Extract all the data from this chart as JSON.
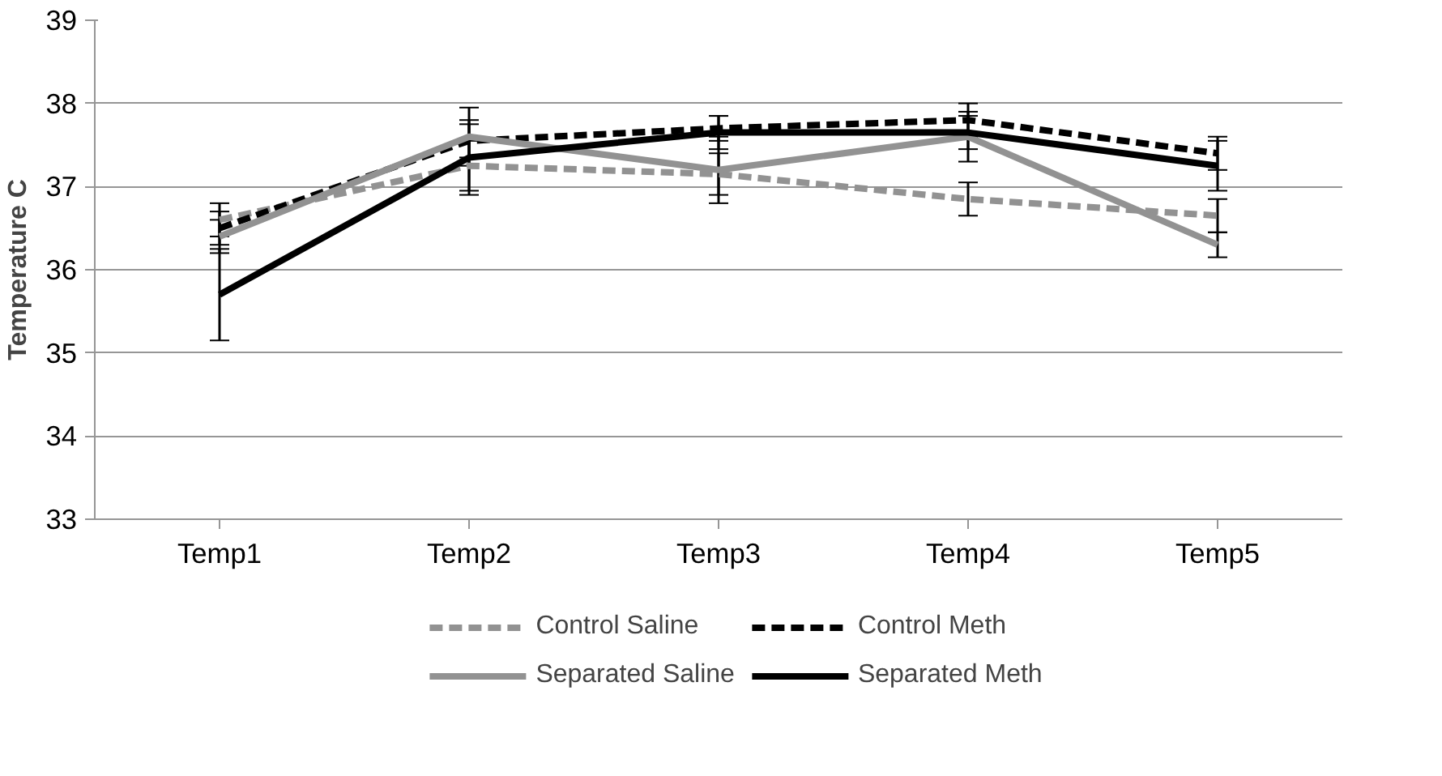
{
  "chart_data": {
    "type": "line",
    "ylabel": "Temperature C",
    "categories": [
      "Temp1",
      "Temp2",
      "Temp3",
      "Temp4",
      "Temp5"
    ],
    "ylim": [
      33,
      39
    ],
    "yticks": [
      33,
      34,
      35,
      36,
      37,
      38,
      39
    ],
    "grid": "y",
    "legend": "bottom",
    "marker": "none",
    "series": [
      {
        "name": "Control Saline",
        "color": "#929292",
        "line_style": "dashed",
        "values": [
          36.6,
          37.25,
          37.15,
          36.85,
          36.65
        ],
        "errors": [
          0.2,
          0.3,
          0.25,
          0.2,
          0.2
        ]
      },
      {
        "name": "Control Meth",
        "color": "#000000",
        "line_style": "dashed",
        "values": [
          36.5,
          37.55,
          37.7,
          37.8,
          37.4
        ],
        "errors": [
          0.2,
          0.2,
          0.15,
          0.2,
          0.2
        ]
      },
      {
        "name": "Separated Saline",
        "color": "#929292",
        "line_style": "solid",
        "values": [
          36.4,
          37.6,
          37.2,
          37.6,
          36.3
        ],
        "errors": [
          0.2,
          0.35,
          0.4,
          0.3,
          0.15
        ]
      },
      {
        "name": "Separated Meth",
        "color": "#000000",
        "line_style": "solid",
        "values": [
          35.7,
          37.35,
          37.65,
          37.65,
          37.25
        ],
        "errors": [
          0.55,
          0.45,
          0.2,
          0.2,
          0.3
        ]
      }
    ]
  }
}
